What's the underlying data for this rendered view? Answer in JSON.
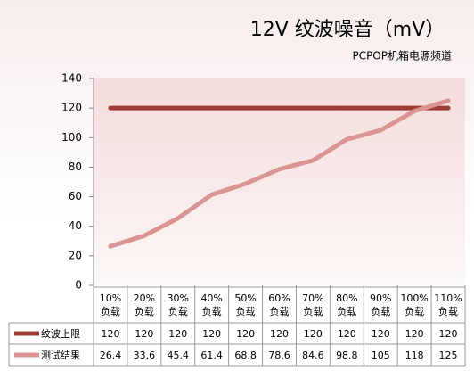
{
  "chart_data": {
    "type": "line",
    "title": "12V 纹波噪音（mV）",
    "subtitle": "PCPOP机箱电源频道",
    "categories": [
      "10%\n负载",
      "20%\n负载",
      "30%\n负载",
      "40%\n负载",
      "50%\n负载",
      "60%\n负载",
      "70%\n负载",
      "80%\n负载",
      "90%\n负载",
      "100%\n负载",
      "110%\n负载"
    ],
    "series": [
      {
        "name": "纹波上限",
        "color": "#9e3b33",
        "values": [
          120,
          120,
          120,
          120,
          120,
          120,
          120,
          120,
          120,
          120,
          120
        ]
      },
      {
        "name": "测试结果",
        "color": "#d99594",
        "values": [
          26.4,
          33.6,
          45.4,
          61.4,
          68.8,
          78.6,
          84.6,
          98.8,
          105,
          118,
          125
        ]
      }
    ],
    "ylim": [
      0,
      140
    ],
    "yticks": [
      0,
      20,
      40,
      60,
      80,
      100,
      120,
      140
    ],
    "grid": false
  }
}
